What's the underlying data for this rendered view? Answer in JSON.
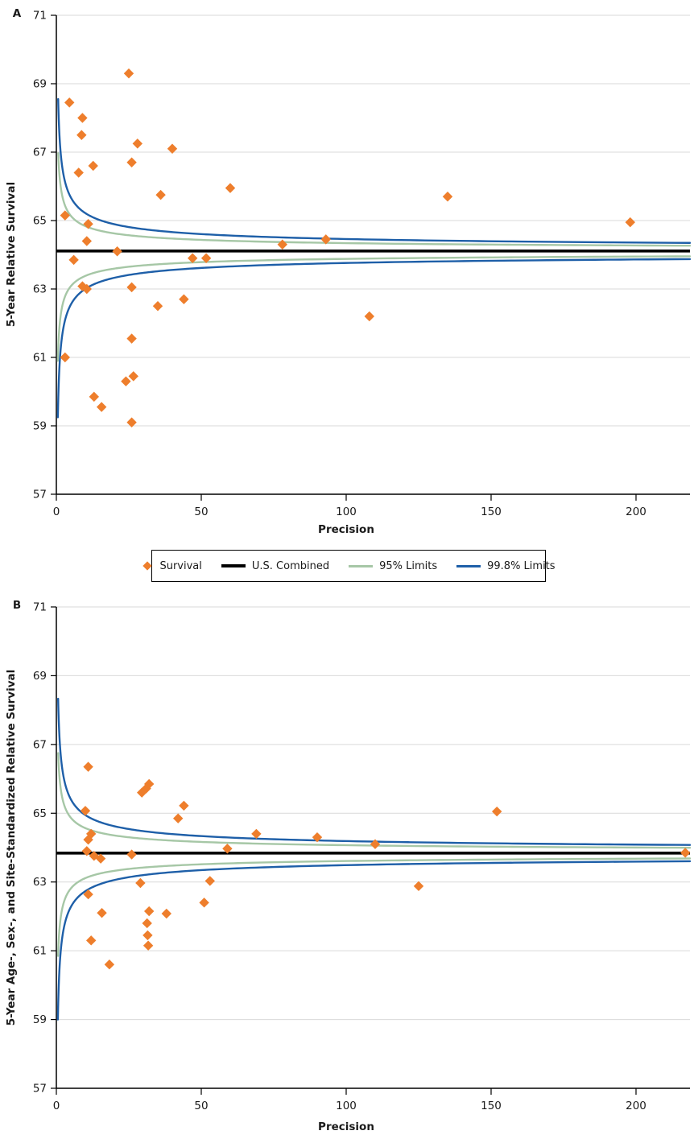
{
  "figure": {
    "background": "#FFFFFF",
    "description": "Two-panel funnel plot of survival versus precision"
  },
  "colors": {
    "survival": "#EE7E2C",
    "us_combined": "#000000",
    "limits95": "#A6C7A6",
    "limits998": "#1E5FA8",
    "gridline": "#D9D9D9",
    "axis": "#000000",
    "text": "#1A1A1A"
  },
  "legend": {
    "items": [
      {
        "label": "Survival",
        "swatch": "diamond",
        "color_key": "survival"
      },
      {
        "label": "U.S. Combined",
        "swatch": "thick-line",
        "color_key": "us_combined"
      },
      {
        "label": "95% Limits",
        "swatch": "line",
        "color_key": "limits95"
      },
      {
        "label": "99.8% Limits",
        "swatch": "line",
        "color_key": "limits998"
      }
    ]
  },
  "chart_data": [
    {
      "type": "scatter",
      "panel_label": "A",
      "xlabel": "Precision",
      "ylabel": "5-Year Relative Survival",
      "xlim": [
        0,
        218.6
      ],
      "ylim": [
        57,
        71
      ],
      "xticks": [
        0,
        50,
        100,
        150,
        200
      ],
      "yticks": [
        71,
        69,
        67,
        65,
        63,
        61,
        59,
        57
      ],
      "grid": "horizontal",
      "center_line": {
        "name": "U.S. Combined",
        "value": 64.11
      },
      "limit_curves": [
        {
          "name": "95% Limits",
          "k": 2.3,
          "color_key": "limits95",
          "y_top": 66.97,
          "y_bottom": 60.9
        },
        {
          "name": "99.8% Limits",
          "k": 3.5,
          "color_key": "limits998",
          "y_top": 68.55,
          "y_bottom": 59.25
        }
      ],
      "series": [
        {
          "name": "Survival",
          "marker": "diamond",
          "color_key": "survival",
          "points": [
            [
              25,
              69.3
            ],
            [
              4.5,
              68.45
            ],
            [
              9,
              68.0
            ],
            [
              8.7,
              67.5
            ],
            [
              28,
              67.25
            ],
            [
              40,
              67.1
            ],
            [
              26,
              66.7
            ],
            [
              12.7,
              66.6
            ],
            [
              7.7,
              66.4
            ],
            [
              60,
              65.95
            ],
            [
              36,
              65.75
            ],
            [
              135,
              65.7
            ],
            [
              3,
              65.15
            ],
            [
              11,
              64.9
            ],
            [
              198,
              64.95
            ],
            [
              93,
              64.45
            ],
            [
              10.5,
              64.4
            ],
            [
              78,
              64.3
            ],
            [
              21,
              64.1
            ],
            [
              47,
              63.9
            ],
            [
              51.7,
              63.9
            ],
            [
              6,
              63.85
            ],
            [
              9,
              63.08
            ],
            [
              10.5,
              63.0
            ],
            [
              26,
              63.05
            ],
            [
              44,
              62.7
            ],
            [
              35,
              62.5
            ],
            [
              108,
              62.2
            ],
            [
              26,
              61.55
            ],
            [
              3,
              61.0
            ],
            [
              26.6,
              60.45
            ],
            [
              24,
              60.3
            ],
            [
              13,
              59.85
            ],
            [
              15.6,
              59.55
            ],
            [
              26,
              59.1
            ]
          ]
        }
      ]
    },
    {
      "type": "scatter",
      "panel_label": "B",
      "xlabel": "Precision",
      "ylabel": "5-Year Age-, Sex-, and Site-Standardized Relative Survival",
      "xlim": [
        0,
        218.6
      ],
      "ylim": [
        57,
        71
      ],
      "xticks": [
        0,
        50,
        100,
        150,
        200
      ],
      "yticks": [
        71,
        69,
        67,
        65,
        63,
        61,
        59,
        57
      ],
      "grid": "horizontal",
      "center_line": {
        "name": "U.S. Combined",
        "value": 63.84
      },
      "limit_curves": [
        {
          "name": "95% Limits",
          "k": 2.3,
          "color_key": "limits95",
          "y_top": 66.75,
          "y_bottom": 60.85
        },
        {
          "name": "99.8% Limits",
          "k": 3.5,
          "color_key": "limits998",
          "y_top": 68.33,
          "y_bottom": 59.0
        }
      ],
      "series": [
        {
          "name": "Survival",
          "marker": "diamond",
          "color_key": "survival",
          "points": [
            [
              11,
              66.35
            ],
            [
              29.5,
              65.6
            ],
            [
              31,
              65.72
            ],
            [
              32,
              65.85
            ],
            [
              10,
              65.07
            ],
            [
              152,
              65.05
            ],
            [
              44,
              65.22
            ],
            [
              42,
              64.85
            ],
            [
              69,
              64.4
            ],
            [
              12,
              64.4
            ],
            [
              11,
              64.23
            ],
            [
              90,
              64.3
            ],
            [
              110,
              64.1
            ],
            [
              26,
              63.8
            ],
            [
              10.5,
              63.9
            ],
            [
              13,
              63.76
            ],
            [
              15.3,
              63.68
            ],
            [
              59,
              63.97
            ],
            [
              217,
              63.85
            ],
            [
              29,
              62.97
            ],
            [
              53,
              63.03
            ],
            [
              11,
              62.64
            ],
            [
              125,
              62.88
            ],
            [
              51,
              62.4
            ],
            [
              15.7,
              62.1
            ],
            [
              32,
              62.15
            ],
            [
              38,
              62.08
            ],
            [
              31.3,
              61.8
            ],
            [
              31.5,
              61.45
            ],
            [
              31.7,
              61.15
            ],
            [
              12,
              61.3
            ],
            [
              18.3,
              60.6
            ]
          ]
        }
      ]
    }
  ]
}
